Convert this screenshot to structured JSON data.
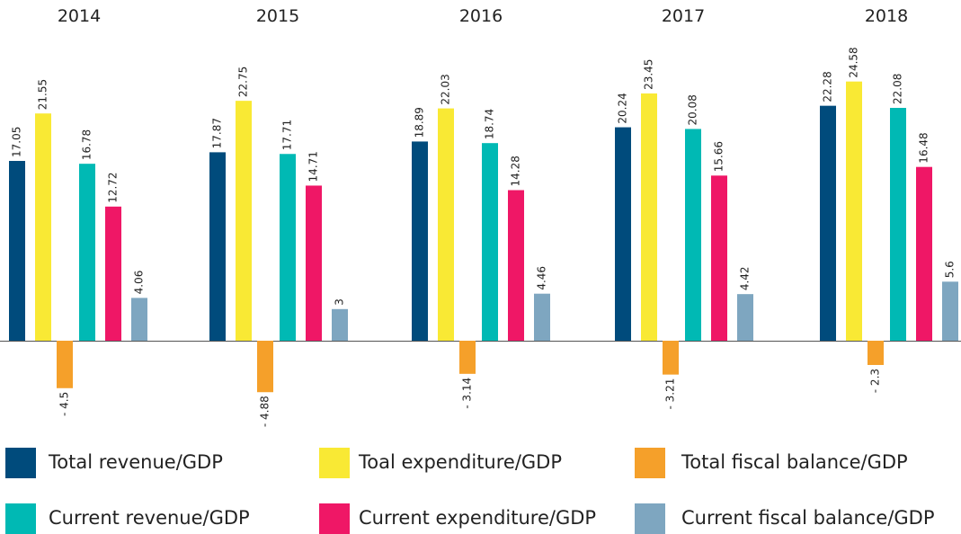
{
  "chart_data": {
    "type": "bar",
    "categories": [
      "2014",
      "2015",
      "2016",
      "2017",
      "2018"
    ],
    "series": [
      {
        "name": "Total revenue/GDP",
        "color": "#004b7c",
        "values": [
          17.05,
          17.87,
          18.89,
          20.24,
          22.28
        ]
      },
      {
        "name": "Toal expenditure/GDP",
        "color": "#f9e934",
        "values": [
          21.55,
          22.75,
          22.03,
          23.45,
          24.58
        ]
      },
      {
        "name": "Total fiscal balance/GDP",
        "color": "#f5a02a",
        "values": [
          -4.5,
          -4.88,
          -3.14,
          -3.21,
          -2.3
        ],
        "value_labels": [
          "- 4.5",
          "- 4.88",
          "- 3.14",
          "- 3.21",
          "- 2.3"
        ]
      },
      {
        "name": "Current revenue/GDP",
        "color": "#00b9b4",
        "values": [
          16.78,
          17.71,
          18.74,
          20.08,
          22.08
        ]
      },
      {
        "name": "Current expenditure/GDP",
        "color": "#ef1766",
        "values": [
          12.72,
          14.71,
          14.28,
          15.66,
          16.48
        ]
      },
      {
        "name": "Current fiscal balance/GDP",
        "color": "#7ea6c0",
        "values": [
          4.06,
          3,
          4.46,
          4.42,
          5.6
        ]
      }
    ]
  }
}
